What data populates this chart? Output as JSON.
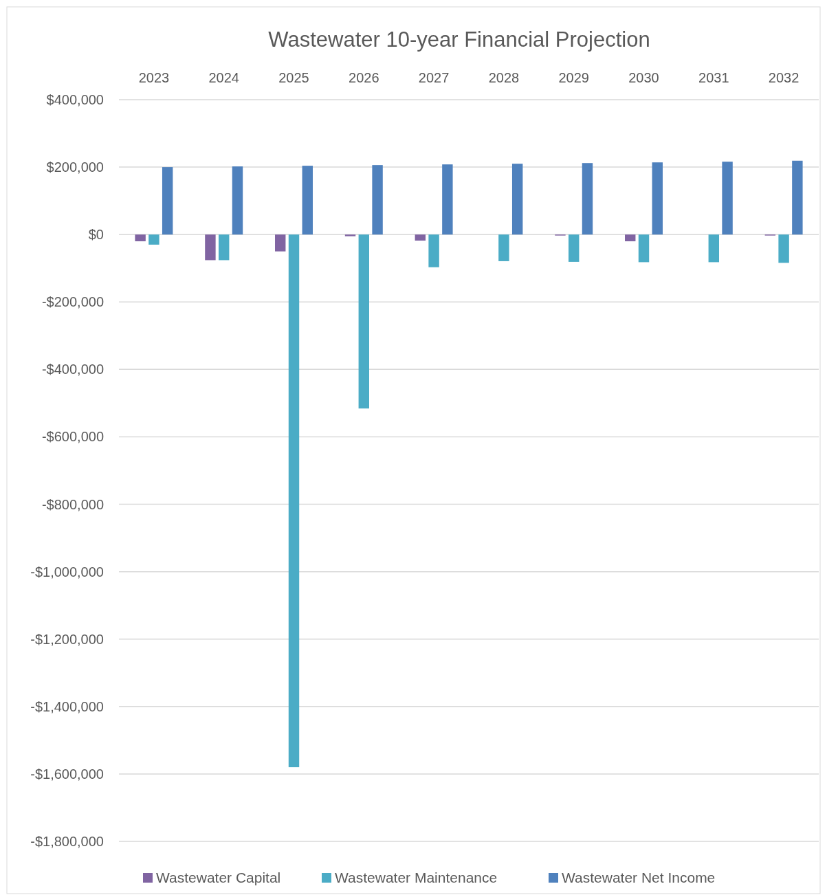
{
  "chart_data": {
    "type": "bar",
    "title": "Wastewater 10-year Financial Projection",
    "categories": [
      "2023",
      "2024",
      "2025",
      "2026",
      "2027",
      "2028",
      "2029",
      "2030",
      "2031",
      "2032"
    ],
    "series": [
      {
        "name": "Wastewater Capital",
        "color": "#8064a2",
        "values": [
          -20000,
          -76000,
          -50000,
          -5000,
          -18000,
          null,
          -3000,
          -20000,
          null,
          -3000
        ]
      },
      {
        "name": "Wastewater Maintenance",
        "color": "#4bacc6",
        "values": [
          -30000,
          -76000,
          -1580000,
          -516000,
          -97000,
          -79000,
          -81000,
          -82000,
          -82000,
          -84000
        ]
      },
      {
        "name": "Wastewater Net Income",
        "color": "#4f81bd",
        "values": [
          200000,
          202000,
          204000,
          206000,
          208000,
          210000,
          212000,
          214000,
          216000,
          219000
        ]
      }
    ],
    "ylim": [
      -1800000,
      400000
    ],
    "yticks": [
      {
        "value": 400000,
        "label": "$400,000"
      },
      {
        "value": 200000,
        "label": "$200,000"
      },
      {
        "value": 0,
        "label": "$0"
      },
      {
        "value": -200000,
        "label": "-$200,000"
      },
      {
        "value": -400000,
        "label": "-$400,000"
      },
      {
        "value": -600000,
        "label": "-$600,000"
      },
      {
        "value": -800000,
        "label": "-$800,000"
      },
      {
        "value": -1000000,
        "label": "-$1,000,000"
      },
      {
        "value": -1200000,
        "label": "-$1,200,000"
      },
      {
        "value": -1400000,
        "label": "-$1,400,000"
      },
      {
        "value": -1600000,
        "label": "-$1,600,000"
      },
      {
        "value": -1800000,
        "label": "-$1,800,000"
      }
    ],
    "grid": "y",
    "legend": "bottom"
  }
}
